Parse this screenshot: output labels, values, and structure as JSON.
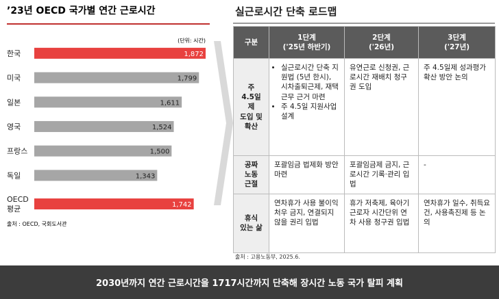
{
  "chart_data": {
    "type": "bar",
    "orientation": "horizontal",
    "title": "’23년 OECD 국가별 연간 근로시간",
    "subtitle": "(단위: 시간)",
    "categories": [
      "한국",
      "미국",
      "일본",
      "영국",
      "프랑스",
      "독일",
      "OECD\n평균"
    ],
    "values": [
      1872,
      1799,
      1611,
      1524,
      1500,
      1343,
      1742
    ],
    "value_labels": [
      "1,872",
      "1,799",
      "1,611",
      "1,524",
      "1,500",
      "1,343",
      "1,742"
    ],
    "colors": [
      "#e8413f",
      "#a6a6a6",
      "#a6a6a6",
      "#a6a6a6",
      "#a6a6a6",
      "#a6a6a6",
      "#e8413f"
    ],
    "source": "출처 : OECD, 국회도서관"
  },
  "roadmap": {
    "title": "실근로시간 단축 로드맵",
    "header": [
      "구분",
      "1단계\n('25년 하반기)",
      "2단계\n('26년)",
      "3단계\n('27년)"
    ],
    "rows": [
      [
        "주\n4.5일제\n도입 및\n확산",
        [
          "실근로시간 단축 지원법 (5년 한시), 시차출퇴근제, 재택근무 근거 마련",
          "주 4.5일 지원사업 설계"
        ],
        "유연근로 신청권, 근로시간 재배치 청구권 도입",
        "주 4.5일제 성과평가 확산 방안 논의"
      ],
      [
        "공짜\n노동\n근절",
        "포괄임금 법제화 방안 마련",
        "포괄임금제 금지, 근로시간 기록·관리 입법",
        "-"
      ],
      [
        "휴식\n있는 삶",
        "연차휴가 사용 불이익처우 금지, 연결되지 않을 권리 입법",
        "휴가 저축제, 육아기 근로자 시간단위 연차 사용 청구권 입법",
        "연차휴가 일수, 취득요건, 사용촉진제 등 논의"
      ]
    ],
    "source": "출처 : 고용노동부, 2025.6."
  },
  "banner": "2030년까지 연간 근로시간을 1717시간까지 단축해 장시간 노동 국가 탈피 계획"
}
